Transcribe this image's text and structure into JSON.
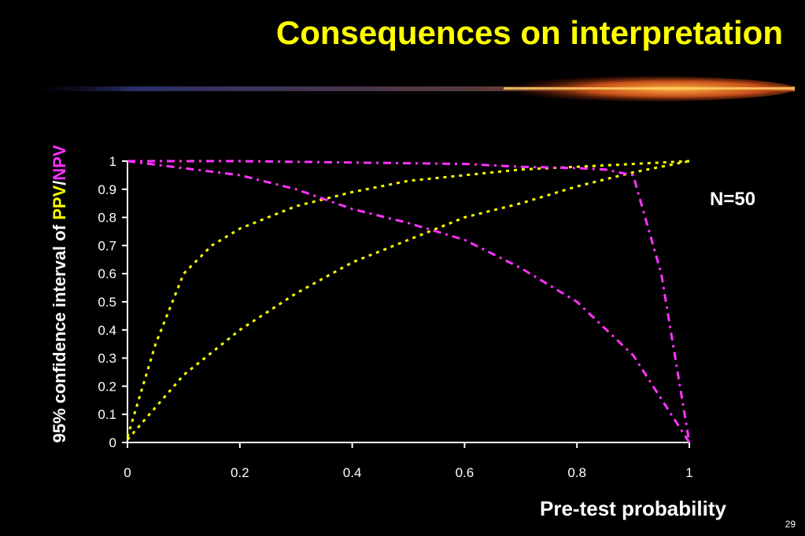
{
  "slide": {
    "title": "Consequences on interpretation",
    "number": "29"
  },
  "colors": {
    "background": "#000000",
    "title": "#ffff00",
    "ppv": "#ffff00",
    "npv": "#ff33ff",
    "axis": "#ffffff"
  },
  "chart_data": {
    "type": "line",
    "xlabel": "Pre-test probability",
    "ylabel": {
      "prefix": "95% confidence interval of ",
      "ppv": "PPV",
      "separator": "/",
      "npv": "NPV"
    },
    "annotation": "N=50",
    "xlim": [
      0,
      1
    ],
    "ylim": [
      0,
      1
    ],
    "x_ticks": [
      "0",
      "0.2",
      "0.4",
      "0.6",
      "0.8",
      "1"
    ],
    "y_ticks": [
      "0",
      "0.1",
      "0.2",
      "0.3",
      "0.4",
      "0.5",
      "0.6",
      "0.7",
      "0.8",
      "0.9",
      "1"
    ],
    "grid": false,
    "series": [
      {
        "color": "#ffff00",
        "style": "dotted",
        "points": [
          [
            0,
            0.02
          ],
          [
            0.05,
            0.35
          ],
          [
            0.1,
            0.6
          ],
          [
            0.15,
            0.7
          ],
          [
            0.2,
            0.76
          ],
          [
            0.25,
            0.8
          ],
          [
            0.3,
            0.84
          ],
          [
            0.4,
            0.89
          ],
          [
            0.5,
            0.93
          ],
          [
            0.6,
            0.95
          ],
          [
            0.7,
            0.97
          ],
          [
            0.8,
            0.98
          ],
          [
            0.9,
            0.99
          ],
          [
            1,
            1
          ]
        ]
      },
      {
        "color": "#ffff00",
        "style": "dotted",
        "points": [
          [
            0,
            0.01
          ],
          [
            0.1,
            0.24
          ],
          [
            0.2,
            0.4
          ],
          [
            0.3,
            0.53
          ],
          [
            0.4,
            0.64
          ],
          [
            0.5,
            0.72
          ],
          [
            0.6,
            0.8
          ],
          [
            0.7,
            0.85
          ],
          [
            0.8,
            0.91
          ],
          [
            0.9,
            0.96
          ],
          [
            1,
            1
          ]
        ]
      },
      {
        "color": "#ff33ff",
        "style": "dash-dot",
        "points": [
          [
            0,
            1
          ],
          [
            0.2,
            0.95
          ],
          [
            0.3,
            0.9
          ],
          [
            0.4,
            0.83
          ],
          [
            0.5,
            0.78
          ],
          [
            0.6,
            0.72
          ],
          [
            0.7,
            0.62
          ],
          [
            0.8,
            0.5
          ],
          [
            0.9,
            0.31
          ],
          [
            1,
            0
          ]
        ]
      },
      {
        "color": "#ff33ff",
        "style": "dash-dot",
        "points": [
          [
            0,
            1
          ],
          [
            0.2,
            1
          ],
          [
            0.4,
            0.995
          ],
          [
            0.6,
            0.99
          ],
          [
            0.7,
            0.98
          ],
          [
            0.8,
            0.975
          ],
          [
            0.85,
            0.97
          ],
          [
            0.9,
            0.95
          ],
          [
            0.95,
            0.6
          ],
          [
            1,
            0
          ]
        ]
      }
    ]
  }
}
